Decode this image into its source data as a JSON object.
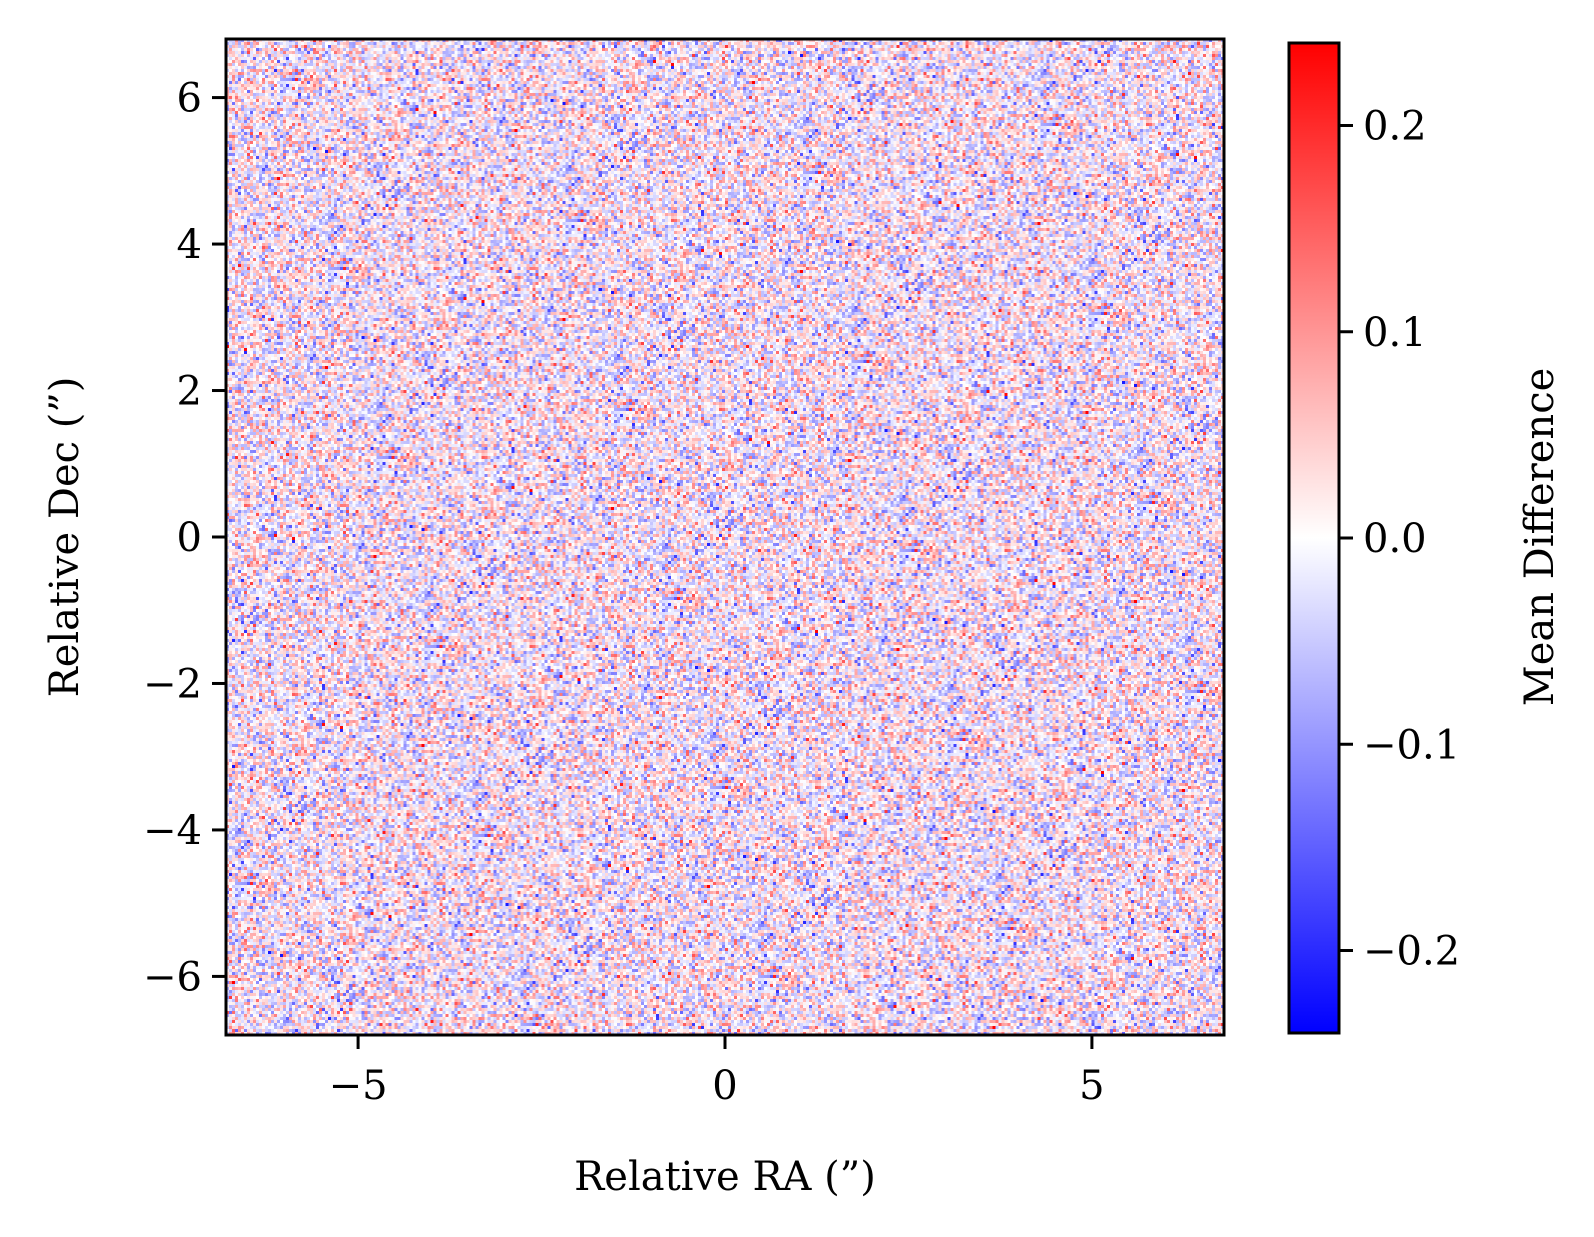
{
  "chart_data": {
    "type": "heatmap",
    "title": "",
    "xlabel": "Relative RA (”)",
    "ylabel": "Relative Dec (”)",
    "xlim": [
      -6.8,
      6.8
    ],
    "ylim": [
      -6.8,
      6.8
    ],
    "x_ticks": [
      -5,
      0,
      5
    ],
    "x_tick_labels": [
      "−5",
      "0",
      "5"
    ],
    "y_ticks": [
      -6,
      -4,
      -2,
      0,
      2,
      4,
      6
    ],
    "y_tick_labels": [
      "−6",
      "−4",
      "−2",
      "0",
      "2",
      "4",
      "6"
    ],
    "grid": false,
    "legend": "none",
    "description_of_values": "pixel-level noise around zero, roughly uniform across the field",
    "colorbar": {
      "label": "Mean Difference",
      "range": [
        -0.24,
        0.24
      ],
      "ticks": [
        -0.2,
        -0.1,
        0.0,
        0.1,
        0.2
      ],
      "tick_labels": [
        "−0.2",
        "−0.1",
        "0.0",
        "0.1",
        "0.2"
      ],
      "colormap": "bwr",
      "colors": {
        "low": "#0000ff",
        "mid": "#ffffff",
        "high": "#ff0000"
      }
    }
  }
}
